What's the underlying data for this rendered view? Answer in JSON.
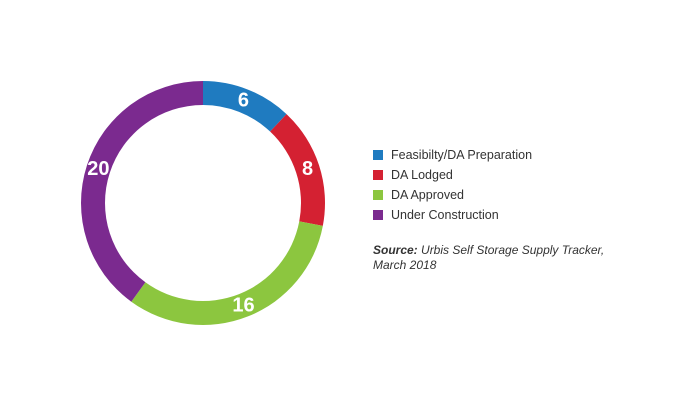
{
  "chart_data": {
    "type": "pie",
    "categories": [
      "Feasibilty/DA Preparation",
      "DA Lodged",
      "DA Approved",
      "Under Construction"
    ],
    "values": [
      6,
      8,
      16,
      20
    ],
    "colors": [
      "#1f7bc0",
      "#d42132",
      "#8cc63f",
      "#7b2a8f"
    ],
    "style": "donut",
    "legend_position": "right",
    "title": "",
    "xlabel": "",
    "ylabel": ""
  },
  "legend": {
    "items": [
      {
        "label": "Feasibilty/DA Preparation",
        "color": "#1f7bc0"
      },
      {
        "label": "DA Lodged",
        "color": "#d42132"
      },
      {
        "label": "DA Approved",
        "color": "#8cc63f"
      },
      {
        "label": "Under Construction",
        "color": "#7b2a8f"
      }
    ]
  },
  "source": {
    "prefix": "Source:",
    "text": " Urbis Self Storage Supply Tracker, March 2018"
  }
}
